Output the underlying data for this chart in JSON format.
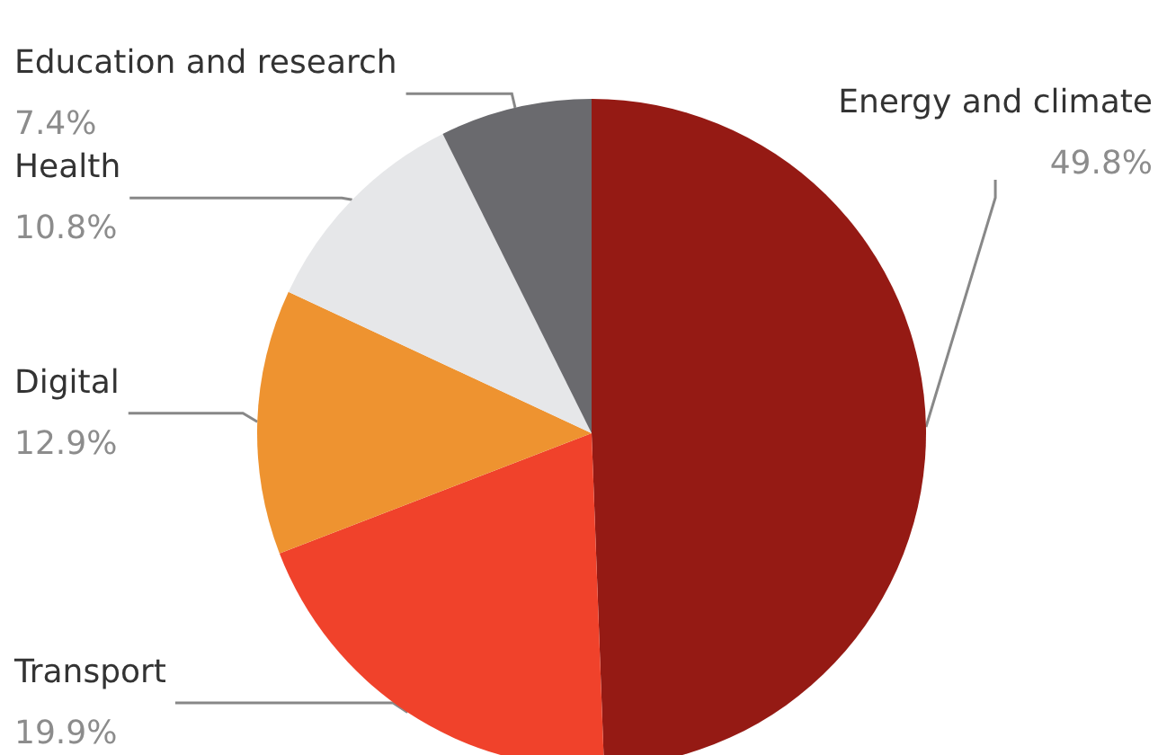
{
  "chart_data": {
    "type": "pie",
    "categories": [
      "Energy and climate",
      "Transport",
      "Digital",
      "Health",
      "Education and research"
    ],
    "values": [
      49.8,
      19.9,
      12.9,
      10.8,
      7.4
    ],
    "value_labels": [
      "49.8%",
      "19.9%",
      "12.9%",
      "10.8%",
      "7.4%"
    ],
    "colors": [
      "#951a14",
      "#f0422b",
      "#ee9330",
      "#e6e7e9",
      "#6a6a6e"
    ],
    "legend": false
  }
}
